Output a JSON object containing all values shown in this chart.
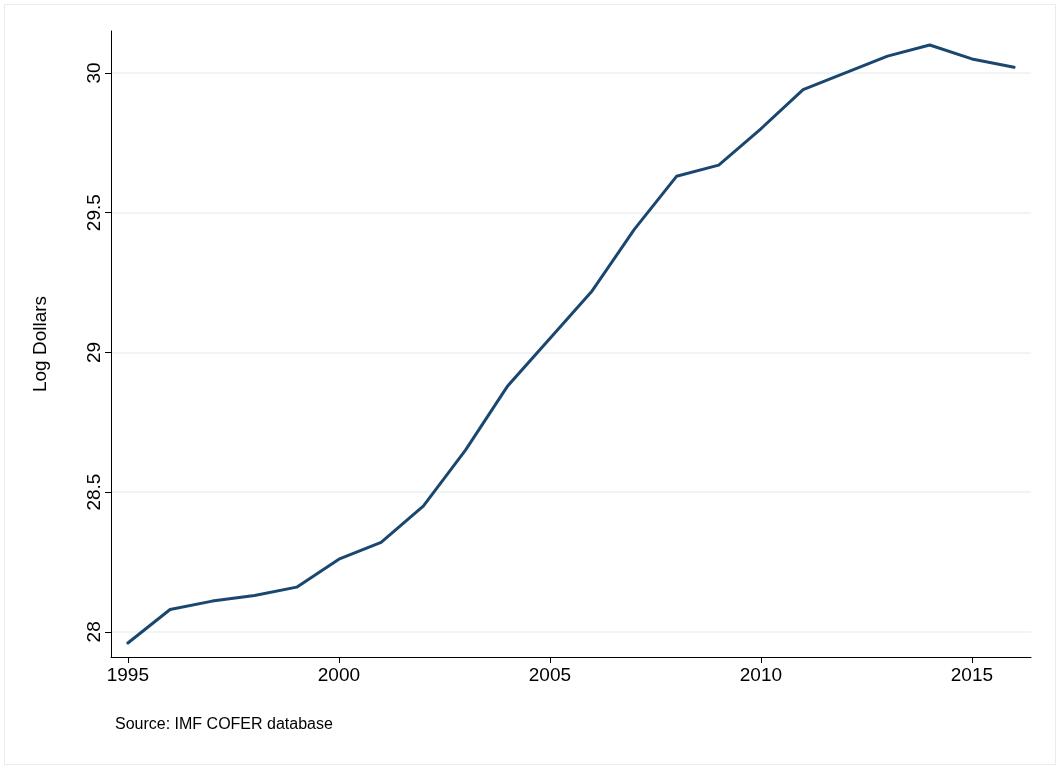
{
  "chart_data": {
    "type": "line",
    "ylabel": "Log Dollars",
    "annotations": [
      "Source: IMF COFER database"
    ],
    "x": [
      1995,
      1996,
      1997,
      1998,
      1999,
      2000,
      2001,
      2002,
      2003,
      2004,
      2005,
      2006,
      2007,
      2008,
      2009,
      2010,
      2011,
      2012,
      2013,
      2014,
      2015,
      2016
    ],
    "series": [
      {
        "color": "#1a476f",
        "values": [
          27.96,
          28.08,
          28.11,
          28.13,
          28.16,
          28.26,
          28.32,
          28.45,
          28.65,
          28.88,
          29.05,
          29.22,
          29.44,
          29.63,
          29.67,
          29.8,
          29.94,
          30.0,
          30.06,
          30.1,
          30.05,
          30.02
        ]
      }
    ],
    "xlim": [
      1994.6,
      2016.4
    ],
    "xticks": [
      1995,
      2000,
      2005,
      2010,
      2015
    ],
    "ylim": [
      27.91,
      30.15
    ],
    "yticks": [
      28,
      28.5,
      29,
      29.5,
      30
    ],
    "grid": "y",
    "marker": "none",
    "line_style": "solid"
  }
}
